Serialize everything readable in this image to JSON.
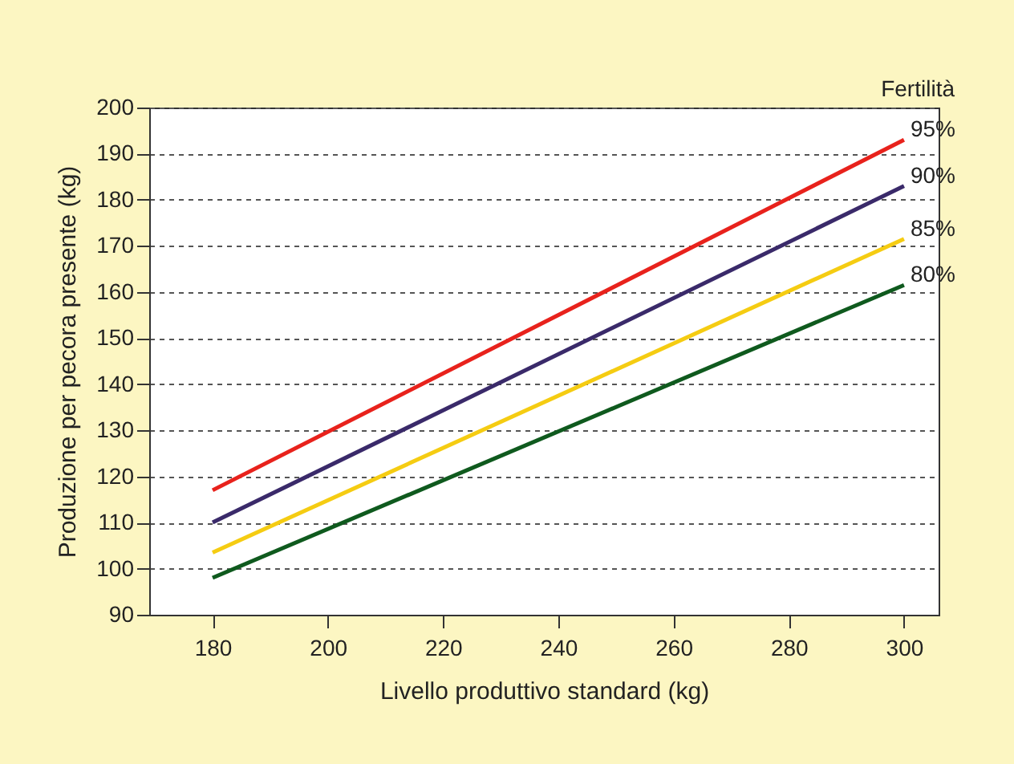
{
  "chart_data": {
    "type": "line",
    "xlabel": "Livello produttivo standard (kg)",
    "ylabel": "Produzione per pecora presente (kg)",
    "legend_title": "Fertilità",
    "x": [
      180,
      300
    ],
    "series": [
      {
        "name": "95%",
        "color": "#e8221c",
        "values": [
          117,
          193
        ]
      },
      {
        "name": "90%",
        "color": "#3a2a6a",
        "values": [
          110,
          183
        ]
      },
      {
        "name": "85%",
        "color": "#f5cc12",
        "values": [
          103.5,
          171.5
        ]
      },
      {
        "name": "80%",
        "color": "#0f5a1e",
        "values": [
          98,
          161.5
        ]
      }
    ],
    "xlim": [
      169,
      306
    ],
    "xticks": [
      180,
      200,
      220,
      240,
      260,
      280,
      300
    ],
    "ylim": [
      90,
      200
    ],
    "yticks": [
      90,
      100,
      110,
      120,
      130,
      140,
      150,
      160,
      170,
      180,
      190,
      200
    ],
    "grid": "y",
    "legend": "right",
    "marker": "none",
    "line_style": "solid"
  }
}
